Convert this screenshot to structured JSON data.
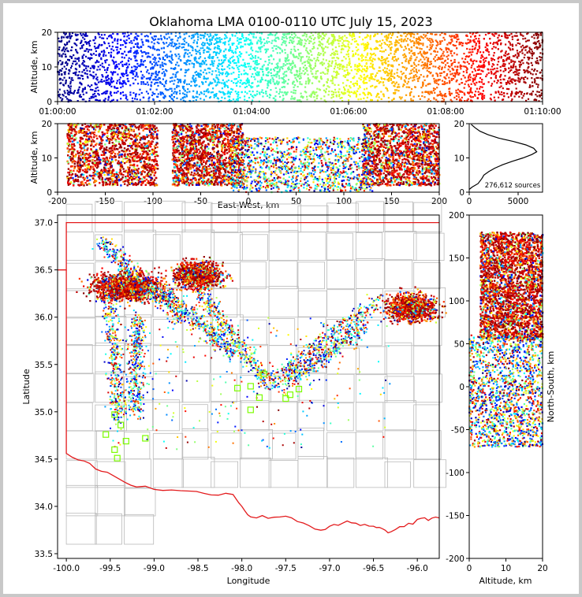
{
  "title": "Oklahoma LMA 0100-0110 UTC July 15, 2023",
  "chart_data": [
    {
      "panel": "time-altitude",
      "type": "scatter",
      "ylabel": "Altitude, km",
      "xlim": [
        "01:00:00",
        "01:10:00"
      ],
      "ylim": [
        0,
        20
      ],
      "xticks": [
        "01:00:00",
        "01:02:00",
        "01:04:00",
        "01:06:00",
        "01:08:00",
        "01:10:00"
      ],
      "yticks": [
        "0",
        "10",
        "20"
      ],
      "color_by": "time",
      "colormap": "jet"
    },
    {
      "panel": "east-west-altitude",
      "type": "scatter",
      "xlabel": "East-West, km",
      "ylabel": "Altitude, km",
      "xlim": [
        -200,
        200
      ],
      "ylim": [
        0,
        20
      ],
      "xticks": [
        "-200",
        "-150",
        "-100",
        "-50",
        "0",
        "50",
        "100",
        "150",
        "200"
      ],
      "yticks": [
        "0",
        "10",
        "20"
      ],
      "clusters": [
        {
          "x_range": [
            -190,
            -95
          ],
          "alt_range": [
            2,
            20
          ]
        },
        {
          "x_range": [
            -80,
            -5
          ],
          "alt_range": [
            2,
            20
          ]
        },
        {
          "x_range": [
            120,
            200
          ],
          "alt_range": [
            2,
            20
          ]
        }
      ]
    },
    {
      "panel": "altitude-histogram",
      "type": "line",
      "ylim": [
        0,
        20
      ],
      "xlim": [
        0,
        7500
      ],
      "xticks": [
        "0",
        "5000"
      ],
      "yticks": [
        "0",
        "10",
        "20"
      ],
      "annotation": "276,612 sources",
      "profile": [
        [
          0,
          0.8
        ],
        [
          300,
          1.5
        ],
        [
          900,
          2.5
        ],
        [
          1300,
          4
        ],
        [
          1500,
          5
        ],
        [
          2000,
          6
        ],
        [
          2600,
          7
        ],
        [
          3400,
          8
        ],
        [
          4400,
          9
        ],
        [
          5500,
          10
        ],
        [
          6400,
          11
        ],
        [
          6900,
          11.8
        ],
        [
          6600,
          12.8
        ],
        [
          5800,
          13.8
        ],
        [
          4500,
          14.8
        ],
        [
          3000,
          15.8
        ],
        [
          1900,
          16.8
        ],
        [
          1100,
          17.8
        ],
        [
          600,
          18.8
        ],
        [
          200,
          19.8
        ]
      ]
    },
    {
      "panel": "plan-view",
      "type": "scatter",
      "xlabel": "Longitude",
      "ylabel": "Latitude",
      "xlim": [
        -100.1,
        -95.75
      ],
      "ylim": [
        33.45,
        37.08
      ],
      "xticks": [
        "-100.0",
        "-99.5",
        "-99.0",
        "-98.5",
        "-98.0",
        "-97.5",
        "-97.0",
        "-96.5",
        "-96.0"
      ],
      "yticks": [
        "33.5",
        "34.0",
        "34.5",
        "35.0",
        "35.5",
        "36.0",
        "36.5",
        "37.0"
      ],
      "clusters": [
        {
          "lon": -99.3,
          "lat": 36.32
        },
        {
          "lon": -98.5,
          "lat": 36.45
        },
        {
          "lon": -96.1,
          "lat": 36.1
        }
      ],
      "stations": [
        [
          -99.55,
          34.76
        ],
        [
          -99.45,
          34.6
        ],
        [
          -99.42,
          34.51
        ],
        [
          -99.38,
          34.86
        ],
        [
          -99.32,
          34.69
        ],
        [
          -99.1,
          34.72
        ],
        [
          -99.45,
          34.97
        ],
        [
          -98.05,
          35.25
        ],
        [
          -97.9,
          35.02
        ],
        [
          -97.9,
          35.27
        ],
        [
          -97.75,
          35.4
        ],
        [
          -97.5,
          35.14
        ],
        [
          -97.45,
          35.18
        ],
        [
          -97.35,
          35.24
        ],
        [
          -97.8,
          35.15
        ]
      ]
    },
    {
      "panel": "altitude-north-south",
      "type": "scatter",
      "xlabel": "Altitude, km",
      "ylabel": "North-South, km",
      "xlim": [
        0,
        20
      ],
      "ylim": [
        -200,
        200
      ],
      "xticks": [
        "0",
        "10",
        "20"
      ],
      "yticks": [
        "-200",
        "-150",
        "-100",
        "-50",
        "0",
        "50",
        "100",
        "150",
        "200"
      ]
    }
  ]
}
